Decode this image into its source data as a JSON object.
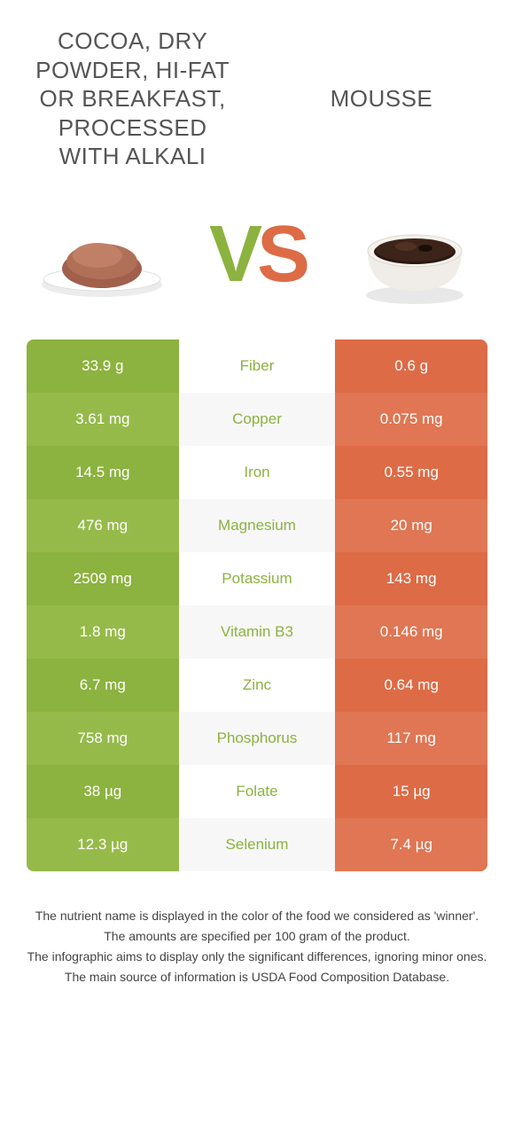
{
  "titles": {
    "left": "Cocoa, dry powder, hi-fat or breakfast, processed with alkali",
    "right": "Mousse"
  },
  "vs": {
    "v": "V",
    "s": "S"
  },
  "colors": {
    "green": "#8cb23f",
    "green_alt": "#96ba4a",
    "orange": "#dd6b46",
    "orange_alt": "#e07653",
    "mid_bg_a": "#ffffff",
    "mid_bg_b": "#f7f7f7",
    "winner_green": "#8cb23f"
  },
  "rows": [
    {
      "left": "33.9 g",
      "mid": "Fiber",
      "right": "0.6 g",
      "winner": "green"
    },
    {
      "left": "3.61 mg",
      "mid": "Copper",
      "right": "0.075 mg",
      "winner": "green"
    },
    {
      "left": "14.5 mg",
      "mid": "Iron",
      "right": "0.55 mg",
      "winner": "green"
    },
    {
      "left": "476 mg",
      "mid": "Magnesium",
      "right": "20 mg",
      "winner": "green"
    },
    {
      "left": "2509 mg",
      "mid": "Potassium",
      "right": "143 mg",
      "winner": "green"
    },
    {
      "left": "1.8 mg",
      "mid": "Vitamin B3",
      "right": "0.146 mg",
      "winner": "green"
    },
    {
      "left": "6.7 mg",
      "mid": "Zinc",
      "right": "0.64 mg",
      "winner": "green"
    },
    {
      "left": "758 mg",
      "mid": "Phosphorus",
      "right": "117 mg",
      "winner": "green"
    },
    {
      "left": "38 µg",
      "mid": "Folate",
      "right": "15 µg",
      "winner": "green"
    },
    {
      "left": "12.3 µg",
      "mid": "Selenium",
      "right": "7.4 µg",
      "winner": "green"
    }
  ],
  "footer": [
    "The nutrient name is displayed in the color of the food we considered as 'winner'.",
    "The amounts are specified per 100 gram of the product.",
    "The infographic aims to display only the significant differences, ignoring minor ones.",
    "The main source of information is USDA Food Composition Database."
  ]
}
